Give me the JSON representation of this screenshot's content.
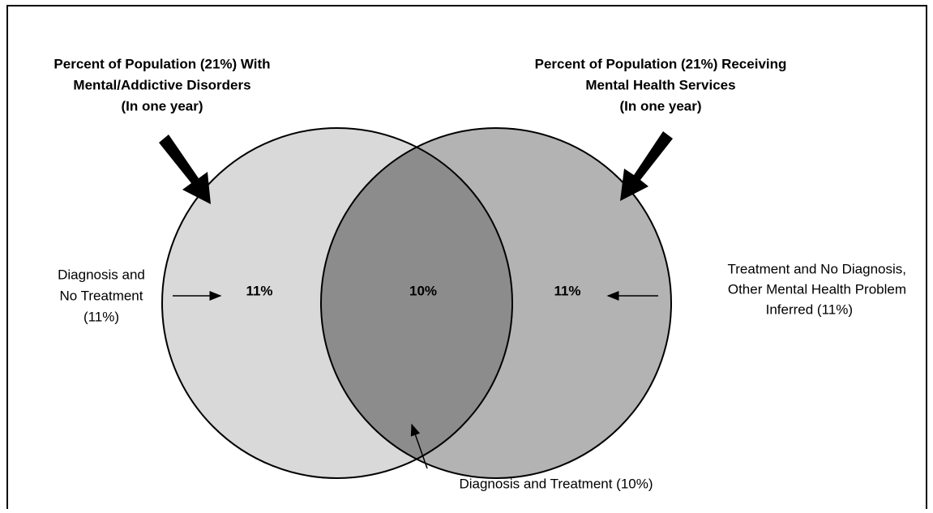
{
  "diagram": {
    "left_title": [
      "Percent of Population (21%) With",
      "Mental/Addictive Disorders",
      "(In one year)"
    ],
    "right_title": [
      "Percent of Population (21%) Receiving",
      "Mental Health Services",
      "(In one year)"
    ],
    "regions": {
      "left": "11%",
      "overlap": "10%",
      "right": "11%"
    },
    "left_label": [
      "Diagnosis and",
      "No Treatment",
      "(11%)"
    ],
    "right_label": [
      "Treatment and No Diagnosis,",
      "Other Mental Health Problem",
      "Inferred (11%)"
    ],
    "bottom_label": "Diagnosis and Treatment (10%)"
  }
}
